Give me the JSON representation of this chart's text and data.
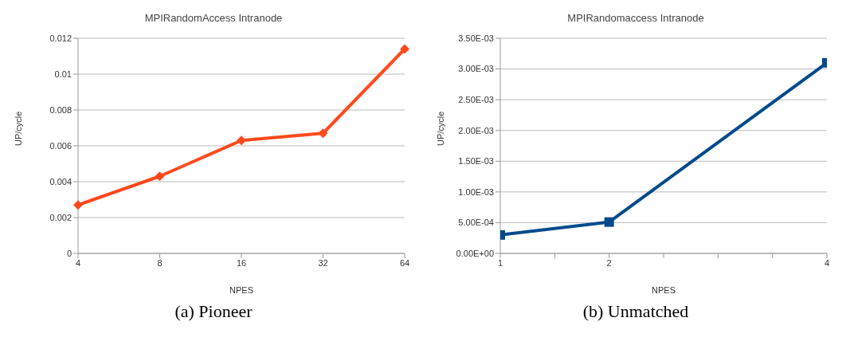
{
  "chart_data": [
    {
      "type": "line",
      "title": "MPIRandomAccess  Intranode",
      "xlabel": "NPES",
      "ylabel": "UP/cycle",
      "categories": [
        "4",
        "8",
        "16",
        "32",
        "64"
      ],
      "series": [
        {
          "color": "#ff4a1c",
          "values": [
            0.0027,
            0.0043,
            0.0063,
            0.0067,
            0.0114
          ]
        }
      ],
      "ylim": [
        0,
        0.012
      ],
      "yticks": [
        0,
        0.002,
        0.004,
        0.006,
        0.008,
        0.01,
        0.012
      ],
      "grid": "y",
      "legend": false,
      "marker": "diamond",
      "line_style": "solid",
      "annotations": [
        "(a) Pioneer"
      ]
    },
    {
      "type": "line",
      "title": "MPIRandomaccess  Intranode",
      "xlabel": "NPES",
      "ylabel": "UP/cycle",
      "x": [
        1,
        2,
        4
      ],
      "series": [
        {
          "color": "#004a8c",
          "values": [
            0.0003,
            0.00051,
            0.0031
          ]
        }
      ],
      "xlim": [
        1,
        4
      ],
      "xticks": [
        1,
        {
          "value": 1.5,
          "label": null
        },
        2,
        {
          "value": 2.5,
          "label": null
        },
        {
          "value": 3,
          "label": null
        },
        {
          "value": 3.5,
          "label": null
        },
        4
      ],
      "ylim": [
        0,
        0.0035
      ],
      "yticks": [
        {
          "value": 0,
          "label": "0.00E+00"
        },
        {
          "value": 0.0005,
          "label": "5.00E-04"
        },
        {
          "value": 0.001,
          "label": "1.00E-03"
        },
        {
          "value": 0.0015,
          "label": "1.50E-03"
        },
        {
          "value": 0.002,
          "label": "2.00E-03"
        },
        {
          "value": 0.0025,
          "label": "2.50E-03"
        },
        {
          "value": 0.003,
          "label": "3.00E-03"
        },
        {
          "value": 0.0035,
          "label": "3.50E-03"
        }
      ],
      "grid": "y",
      "legend": false,
      "marker": "square",
      "line_style": "solid",
      "annotations": [
        "(b) Unmatched"
      ]
    }
  ]
}
